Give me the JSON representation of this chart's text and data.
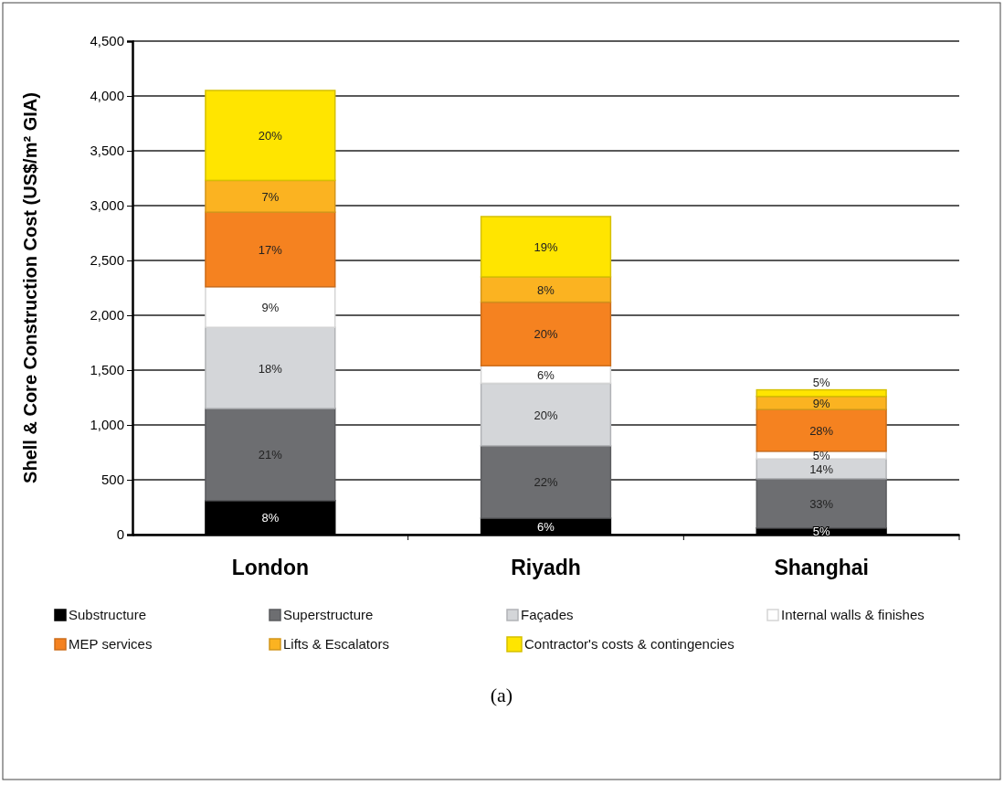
{
  "chart_data": {
    "type": "bar",
    "stacked": true,
    "ylabel": "Shell & Core Construction Cost (US$/m² GIA)",
    "categories": [
      "London",
      "Riyadh",
      "Shanghai"
    ],
    "series": [
      {
        "name": "Substructure",
        "color": "#000000",
        "values": [
          310,
          150,
          60
        ]
      },
      {
        "name": "Superstructure",
        "color": "#6d6e71",
        "values": [
          840,
          660,
          450
        ]
      },
      {
        "name": "Façades",
        "color": "#d4d6d9",
        "values": [
          740,
          570,
          180
        ]
      },
      {
        "name": "Internal walls & finishes",
        "color": "#ffffff",
        "values": [
          370,
          160,
          70
        ]
      },
      {
        "name": "MEP services",
        "color": "#f58220",
        "values": [
          680,
          580,
          380
        ]
      },
      {
        "name": "Lifts & Escalators",
        "color": "#fbb321",
        "values": [
          290,
          230,
          120
        ]
      },
      {
        "name": "Contractor's costs & contingencies",
        "color": "#ffe500",
        "values": [
          820,
          550,
          60
        ]
      }
    ],
    "ylim": [
      0,
      4500
    ],
    "yticks": [
      {
        "value": 0,
        "label": "0"
      },
      {
        "value": 500,
        "label": "500"
      },
      {
        "value": 1000,
        "label": "1,000"
      },
      {
        "value": 1500,
        "label": "1,500"
      },
      {
        "value": 2000,
        "label": "2,000"
      },
      {
        "value": 2500,
        "label": "2,500"
      },
      {
        "value": 3000,
        "label": "3,000"
      },
      {
        "value": 3500,
        "label": "3,500"
      },
      {
        "value": 4000,
        "label": "4,000"
      },
      {
        "value": 4500,
        "label": "4,500"
      }
    ],
    "grid": "y",
    "legend": "bottom",
    "annotations": [
      "8%",
      "21%",
      "18%",
      "9%",
      "17%",
      "7%",
      "20%",
      "6%",
      "22%",
      "20%",
      "6%",
      "20%",
      "8%",
      "19%",
      "5%",
      "33%",
      "14%",
      "5%",
      "28%",
      "9%",
      "5%",
      "(a)"
    ]
  }
}
